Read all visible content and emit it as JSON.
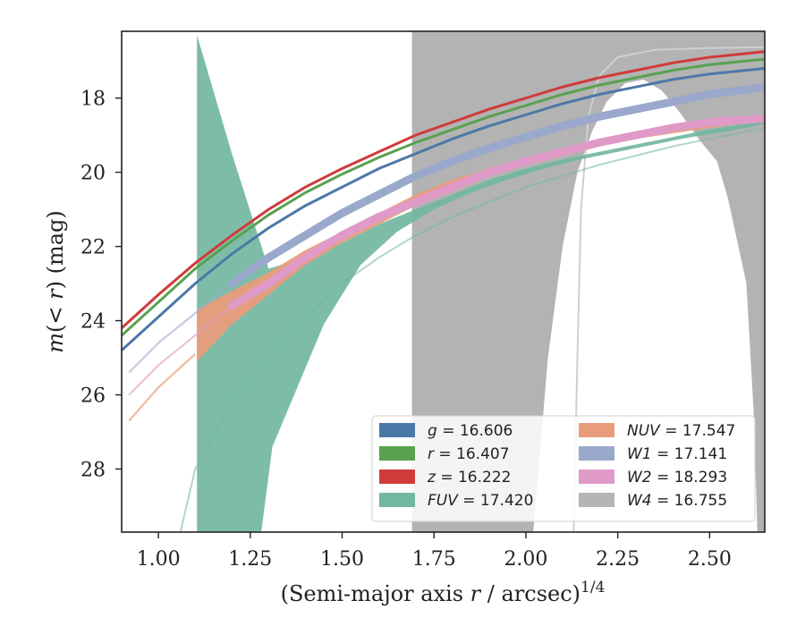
{
  "chart_data": {
    "type": "line",
    "title": "",
    "xlabel": "(Semi-major axis r / arcsec)",
    "xlabel_prefix": "(Semi-major axis ",
    "xlabel_var": "r",
    "xlabel_suffix": " / arcsec)",
    "xlabel_exponent": "1/4",
    "ylabel": "m(< r) (mag)",
    "ylabel_m": "m",
    "ylabel_open": "(< ",
    "ylabel_var": "r",
    "ylabel_close": ") (mag)",
    "xlim": [
      0.9,
      2.65
    ],
    "ylim": [
      29.7,
      16.2
    ],
    "y_inverted": true,
    "xticks": [
      "1.00",
      "1.25",
      "1.50",
      "1.75",
      "2.00",
      "2.25",
      "2.50"
    ],
    "xtick_values": [
      1.0,
      1.25,
      1.5,
      1.75,
      2.0,
      2.25,
      2.5
    ],
    "yticks": [
      "18",
      "20",
      "22",
      "24",
      "26",
      "28"
    ],
    "ytick_values": [
      18,
      20,
      22,
      24,
      26,
      28
    ],
    "grid": false,
    "legend_placement": "lower-right",
    "legend": [
      {
        "band": "g",
        "value": "= 16.606",
        "color": "#4c78a8"
      },
      {
        "band": "r",
        "value": "= 16.407",
        "color": "#59a14f"
      },
      {
        "band": "z",
        "value": "= 16.222",
        "color": "#d03b3b"
      },
      {
        "band": "FUV",
        "value": "= 17.420",
        "color": "#72b7a1"
      },
      {
        "band": "NUV",
        "value": "= 17.547",
        "color": "#e99c7b"
      },
      {
        "band": "W1",
        "value": "= 17.141",
        "color": "#9aa8cc"
      },
      {
        "band": "W2",
        "value": "= 18.293",
        "color": "#e09ac7"
      },
      {
        "band": "W4",
        "value": "= 16.755",
        "color": "#b5b5b5"
      }
    ],
    "series": [
      {
        "band": "W4",
        "color": "#b3b3b3",
        "band_region": {
          "x_start": 1.69,
          "x_end": 2.65
        },
        "inner_gap": {
          "x": [
            2.02,
            2.06,
            2.1,
            2.14,
            2.18,
            2.22,
            2.27,
            2.32,
            2.37,
            2.42,
            2.47,
            2.52,
            2.55,
            2.6,
            2.62,
            2.63
          ],
          "y_upper": [
            29.7,
            25.0,
            22.0,
            20.0,
            18.9,
            18.1,
            17.6,
            17.5,
            17.8,
            18.4,
            19.1,
            19.7,
            20.7,
            23.0,
            26.5,
            29.7
          ]
        },
        "model": {
          "x": [
            2.13,
            2.14,
            2.15,
            2.17,
            2.2,
            2.25,
            2.35,
            2.5,
            2.65
          ],
          "y": [
            29.7,
            25.0,
            21.0,
            18.5,
            17.4,
            16.9,
            16.7,
            16.65,
            16.63
          ]
        }
      },
      {
        "band": "FUV",
        "color": "#72b7a1",
        "band_x": [
          1.105,
          1.2,
          1.3,
          1.4,
          1.5,
          1.6,
          1.7,
          1.8,
          1.9,
          2.0,
          2.1,
          2.2,
          2.3,
          2.4,
          2.5,
          2.65
        ],
        "band_upper": [
          16.3,
          19.5,
          22.6,
          22.3,
          21.9,
          21.4,
          21.0,
          20.6,
          20.2,
          19.9,
          19.65,
          19.45,
          19.25,
          19.05,
          18.85,
          18.6
        ],
        "band_lower_x": [
          1.105,
          1.28,
          1.31,
          1.45,
          1.55,
          1.65,
          1.75,
          1.85,
          1.95,
          2.05,
          2.15,
          2.25,
          2.35,
          2.45,
          2.55,
          2.65
        ],
        "band_lower": [
          29.7,
          29.7,
          27.4,
          24.1,
          22.5,
          21.6,
          21.0,
          20.55,
          20.2,
          19.9,
          19.65,
          19.45,
          19.25,
          19.05,
          18.9,
          18.7
        ],
        "faint_curve": {
          "x": [
            1.06,
            1.1,
            1.2,
            1.3,
            1.4,
            1.5,
            1.6,
            1.7,
            1.8,
            1.9,
            2.0,
            2.1,
            2.2,
            2.3,
            2.4,
            2.5,
            2.65
          ],
          "y": [
            29.7,
            28.0,
            26.2,
            24.9,
            23.9,
            23.0,
            22.3,
            21.7,
            21.2,
            20.8,
            20.4,
            20.1,
            19.8,
            19.55,
            19.3,
            19.1,
            18.8
          ]
        }
      },
      {
        "band": "NUV",
        "color": "#e99c7b",
        "band_x": [
          1.105,
          1.2,
          1.3,
          1.4,
          1.5,
          1.6,
          1.7,
          1.8,
          1.9,
          2.0,
          2.1,
          2.2,
          2.3,
          2.4,
          2.5,
          2.65
        ],
        "band_upper": [
          23.7,
          23.2,
          22.7,
          22.1,
          21.6,
          21.1,
          20.6,
          20.2,
          19.9,
          19.6,
          19.35,
          19.15,
          18.95,
          18.8,
          18.65,
          18.5
        ],
        "band_lower": [
          25.1,
          24.1,
          23.3,
          22.5,
          21.9,
          21.4,
          20.9,
          20.5,
          20.1,
          19.8,
          19.55,
          19.3,
          19.1,
          18.95,
          18.8,
          18.6
        ],
        "faint_curve": {
          "x": [
            0.92,
            1.0,
            1.1
          ],
          "y": [
            26.7,
            25.8,
            24.9
          ]
        }
      },
      {
        "band": "W2",
        "color": "#e09ac7",
        "x": [
          0.92,
          1.0,
          1.1,
          1.2,
          1.3,
          1.4,
          1.5,
          1.6,
          1.7,
          1.8,
          1.9,
          2.0,
          2.1,
          2.2,
          2.3,
          2.4,
          2.5,
          2.65
        ],
        "y": [
          26.0,
          25.2,
          24.4,
          23.6,
          23.0,
          22.3,
          21.7,
          21.2,
          20.8,
          20.4,
          20.0,
          19.7,
          19.45,
          19.2,
          19.0,
          18.8,
          18.65,
          18.55
        ],
        "band_from_x": 1.28
      },
      {
        "band": "W1",
        "color": "#9aa8cc",
        "x": [
          0.92,
          1.0,
          1.1,
          1.2,
          1.3,
          1.4,
          1.5,
          1.6,
          1.7,
          1.8,
          1.9,
          2.0,
          2.1,
          2.2,
          2.3,
          2.4,
          2.5,
          2.65
        ],
        "y": [
          25.4,
          24.6,
          23.8,
          23.0,
          22.3,
          21.7,
          21.1,
          20.6,
          20.1,
          19.7,
          19.35,
          19.05,
          18.75,
          18.5,
          18.3,
          18.1,
          17.9,
          17.7
        ],
        "band_from_x": 1.28
      },
      {
        "band": "g",
        "color": "#4c78a8",
        "x": [
          0.9,
          1.0,
          1.1,
          1.2,
          1.3,
          1.4,
          1.5,
          1.6,
          1.7,
          1.8,
          1.9,
          2.0,
          2.1,
          2.2,
          2.3,
          2.4,
          2.5,
          2.65
        ],
        "y": [
          24.8,
          23.9,
          23.0,
          22.2,
          21.5,
          20.9,
          20.4,
          19.9,
          19.5,
          19.1,
          18.75,
          18.45,
          18.15,
          17.9,
          17.7,
          17.5,
          17.35,
          17.2
        ]
      },
      {
        "band": "r",
        "color": "#59a14f",
        "x": [
          0.9,
          1.0,
          1.1,
          1.2,
          1.3,
          1.4,
          1.5,
          1.6,
          1.7,
          1.8,
          1.9,
          2.0,
          2.1,
          2.2,
          2.3,
          2.4,
          2.5,
          2.65
        ],
        "y": [
          24.4,
          23.5,
          22.6,
          21.85,
          21.15,
          20.55,
          20.05,
          19.6,
          19.2,
          18.85,
          18.5,
          18.2,
          17.9,
          17.65,
          17.45,
          17.25,
          17.1,
          16.95
        ]
      },
      {
        "band": "z",
        "color": "#d03b3b",
        "x": [
          0.9,
          1.0,
          1.1,
          1.2,
          1.3,
          1.4,
          1.5,
          1.6,
          1.7,
          1.8,
          1.9,
          2.0,
          2.1,
          2.2,
          2.3,
          2.4,
          2.5,
          2.65
        ],
        "y": [
          24.2,
          23.3,
          22.45,
          21.7,
          21.0,
          20.4,
          19.9,
          19.45,
          19.0,
          18.65,
          18.3,
          18.0,
          17.7,
          17.45,
          17.25,
          17.05,
          16.9,
          16.75
        ]
      }
    ]
  }
}
